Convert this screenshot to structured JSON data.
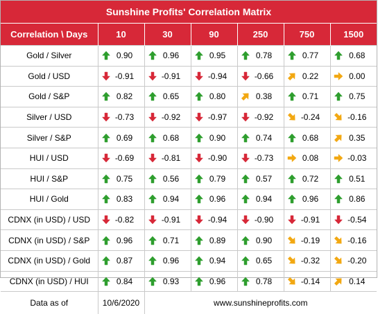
{
  "title": "Sunshine Profits' Correlation Matrix",
  "header": {
    "label": "Correlation \\ Days",
    "days": [
      "10",
      "30",
      "90",
      "250",
      "750",
      "1500"
    ]
  },
  "colors": {
    "accent": "#d72838",
    "up": "#2e9e2e",
    "down": "#d72838",
    "side": "#f2a812"
  },
  "rows": [
    {
      "label": "Gold / Silver",
      "cells": [
        {
          "v": "0.90",
          "d": "up"
        },
        {
          "v": "0.96",
          "d": "up"
        },
        {
          "v": "0.95",
          "d": "up"
        },
        {
          "v": "0.78",
          "d": "up"
        },
        {
          "v": "0.77",
          "d": "up"
        },
        {
          "v": "0.68",
          "d": "up"
        }
      ]
    },
    {
      "label": "Gold / USD",
      "cells": [
        {
          "v": "-0.91",
          "d": "down"
        },
        {
          "v": "-0.91",
          "d": "down"
        },
        {
          "v": "-0.94",
          "d": "down"
        },
        {
          "v": "-0.66",
          "d": "down"
        },
        {
          "v": "0.22",
          "d": "up-right"
        },
        {
          "v": "0.00",
          "d": "right"
        }
      ]
    },
    {
      "label": "Gold / S&P",
      "cells": [
        {
          "v": "0.82",
          "d": "up"
        },
        {
          "v": "0.65",
          "d": "up"
        },
        {
          "v": "0.80",
          "d": "up"
        },
        {
          "v": "0.38",
          "d": "up-right"
        },
        {
          "v": "0.71",
          "d": "up"
        },
        {
          "v": "0.75",
          "d": "up"
        }
      ]
    },
    {
      "label": "Silver / USD",
      "cells": [
        {
          "v": "-0.73",
          "d": "down"
        },
        {
          "v": "-0.92",
          "d": "down"
        },
        {
          "v": "-0.97",
          "d": "down"
        },
        {
          "v": "-0.92",
          "d": "down"
        },
        {
          "v": "-0.24",
          "d": "down-right"
        },
        {
          "v": "-0.16",
          "d": "down-right"
        }
      ]
    },
    {
      "label": "Silver / S&P",
      "cells": [
        {
          "v": "0.69",
          "d": "up"
        },
        {
          "v": "0.68",
          "d": "up"
        },
        {
          "v": "0.90",
          "d": "up"
        },
        {
          "v": "0.74",
          "d": "up"
        },
        {
          "v": "0.68",
          "d": "up"
        },
        {
          "v": "0.35",
          "d": "up-right"
        }
      ]
    },
    {
      "label": "HUI / USD",
      "cells": [
        {
          "v": "-0.69",
          "d": "down"
        },
        {
          "v": "-0.81",
          "d": "down"
        },
        {
          "v": "-0.90",
          "d": "down"
        },
        {
          "v": "-0.73",
          "d": "down"
        },
        {
          "v": "0.08",
          "d": "right"
        },
        {
          "v": "-0.03",
          "d": "right"
        }
      ]
    },
    {
      "label": "HUI / S&P",
      "cells": [
        {
          "v": "0.75",
          "d": "up"
        },
        {
          "v": "0.56",
          "d": "up"
        },
        {
          "v": "0.79",
          "d": "up"
        },
        {
          "v": "0.57",
          "d": "up"
        },
        {
          "v": "0.72",
          "d": "up"
        },
        {
          "v": "0.51",
          "d": "up"
        }
      ]
    },
    {
      "label": "HUI / Gold",
      "cells": [
        {
          "v": "0.83",
          "d": "up"
        },
        {
          "v": "0.94",
          "d": "up"
        },
        {
          "v": "0.96",
          "d": "up"
        },
        {
          "v": "0.94",
          "d": "up"
        },
        {
          "v": "0.96",
          "d": "up"
        },
        {
          "v": "0.86",
          "d": "up"
        }
      ]
    },
    {
      "label": "CDNX (in USD) / USD",
      "cells": [
        {
          "v": "-0.82",
          "d": "down"
        },
        {
          "v": "-0.91",
          "d": "down"
        },
        {
          "v": "-0.94",
          "d": "down"
        },
        {
          "v": "-0.90",
          "d": "down"
        },
        {
          "v": "-0.91",
          "d": "down"
        },
        {
          "v": "-0.54",
          "d": "down"
        }
      ]
    },
    {
      "label": "CDNX (in USD) / S&P",
      "cells": [
        {
          "v": "0.96",
          "d": "up"
        },
        {
          "v": "0.71",
          "d": "up"
        },
        {
          "v": "0.89",
          "d": "up"
        },
        {
          "v": "0.90",
          "d": "up"
        },
        {
          "v": "-0.19",
          "d": "down-right"
        },
        {
          "v": "-0.16",
          "d": "down-right"
        }
      ]
    },
    {
      "label": "CDNX (in USD) / Gold",
      "cells": [
        {
          "v": "0.87",
          "d": "up"
        },
        {
          "v": "0.96",
          "d": "up"
        },
        {
          "v": "0.94",
          "d": "up"
        },
        {
          "v": "0.65",
          "d": "up"
        },
        {
          "v": "-0.32",
          "d": "down-right"
        },
        {
          "v": "-0.20",
          "d": "down-right"
        }
      ]
    },
    {
      "label": "CDNX (in USD) / HUI",
      "cells": [
        {
          "v": "0.84",
          "d": "up"
        },
        {
          "v": "0.93",
          "d": "up"
        },
        {
          "v": "0.96",
          "d": "up"
        },
        {
          "v": "0.78",
          "d": "up"
        },
        {
          "v": "-0.14",
          "d": "down-right"
        },
        {
          "v": "0.14",
          "d": "up-right"
        }
      ]
    }
  ],
  "footer": {
    "label": "Data as of",
    "date": "10/6/2020",
    "url": "www.sunshineprofits.com"
  }
}
